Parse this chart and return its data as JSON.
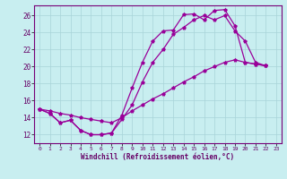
{
  "background_color": "#c8eef0",
  "grid_color": "#a8d4d8",
  "line_color": "#990099",
  "xlabel": "Windchill (Refroidissement éolien,°C)",
  "xlim": [
    -0.5,
    23.5
  ],
  "ylim": [
    11.0,
    27.2
  ],
  "yticks": [
    12,
    14,
    16,
    18,
    20,
    22,
    24,
    26
  ],
  "xticks": [
    0,
    1,
    2,
    3,
    4,
    5,
    6,
    7,
    8,
    9,
    10,
    11,
    12,
    13,
    14,
    15,
    16,
    17,
    18,
    19,
    20,
    21,
    22,
    23
  ],
  "curve1_x": [
    0,
    1,
    2,
    3,
    4,
    5,
    6,
    7,
    8,
    9,
    10,
    11,
    12,
    13,
    14,
    15,
    16,
    17,
    18,
    19,
    20,
    21,
    22
  ],
  "curve1_y": [
    15.0,
    14.5,
    13.4,
    13.7,
    12.5,
    12.0,
    12.0,
    12.2,
    14.3,
    17.5,
    20.5,
    23.0,
    24.2,
    24.3,
    26.1,
    26.2,
    25.5,
    26.6,
    26.7,
    24.8,
    20.5,
    20.3,
    20.1
  ],
  "curve2_x": [
    0,
    1,
    2,
    3,
    4,
    5,
    6,
    7,
    8,
    9,
    10,
    11,
    12,
    13,
    14,
    15,
    16,
    17,
    18,
    19,
    20,
    21,
    22
  ],
  "curve2_y": [
    15.0,
    14.5,
    13.4,
    13.7,
    12.5,
    12.0,
    12.0,
    12.2,
    13.8,
    15.5,
    18.2,
    20.5,
    22.0,
    23.8,
    24.6,
    25.5,
    26.0,
    25.5,
    26.0,
    24.2,
    23.0,
    20.5,
    20.1
  ],
  "curve3_x": [
    0,
    1,
    2,
    3,
    4,
    5,
    6,
    7,
    8,
    9,
    10,
    11,
    12,
    13,
    14,
    15,
    16,
    17,
    18,
    19,
    20,
    21,
    22
  ],
  "curve3_y": [
    15.0,
    14.8,
    14.5,
    14.3,
    14.0,
    13.8,
    13.6,
    13.4,
    14.0,
    14.8,
    15.5,
    16.2,
    16.8,
    17.5,
    18.2,
    18.8,
    19.5,
    20.0,
    20.5,
    20.8,
    20.5,
    20.3,
    20.1
  ]
}
